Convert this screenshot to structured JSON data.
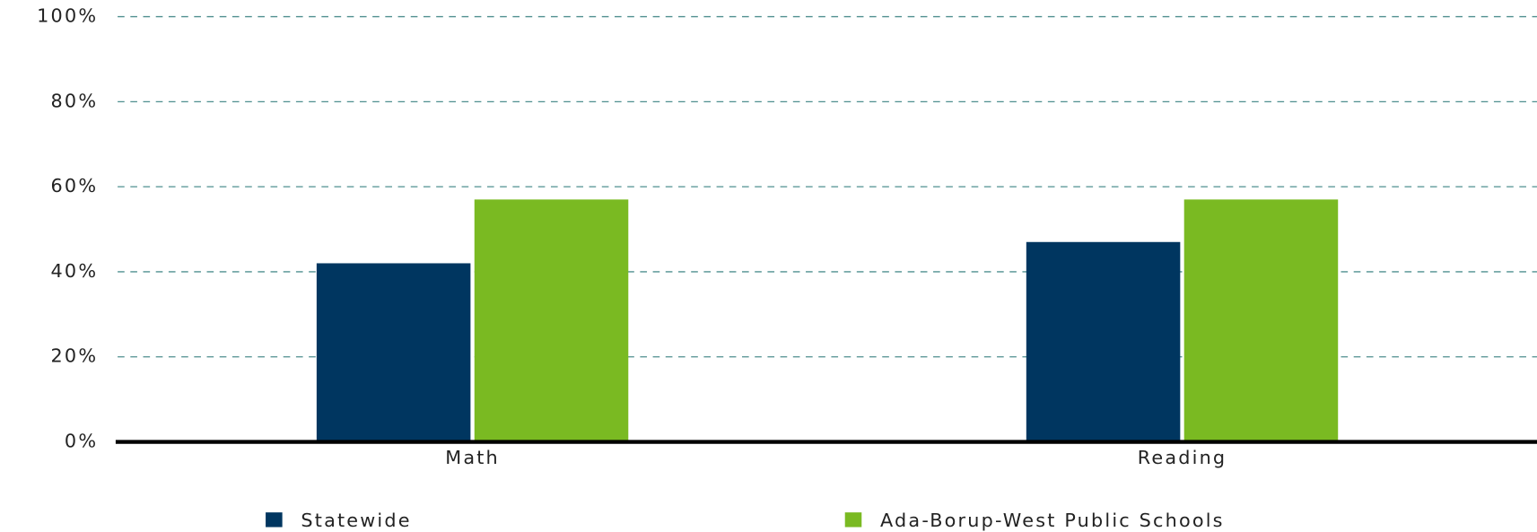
{
  "chart_data": {
    "type": "bar",
    "categories": [
      "Math",
      "Reading"
    ],
    "series": [
      {
        "name": "Statewide",
        "color": "#003660",
        "values": [
          42,
          47
        ]
      },
      {
        "name": "Ada-Borup-West Public Schools",
        "color": "#7aba22",
        "values": [
          57,
          57
        ]
      }
    ],
    "ylim": [
      0,
      100
    ],
    "yticks": [
      {
        "value": 0,
        "label": "0%"
      },
      {
        "value": 20,
        "label": "20%"
      },
      {
        "value": 40,
        "label": "40%"
      },
      {
        "value": 60,
        "label": "60%"
      },
      {
        "value": 80,
        "label": "80%"
      },
      {
        "value": 100,
        "label": "100%"
      }
    ],
    "grid": true,
    "legend": "bottom"
  }
}
